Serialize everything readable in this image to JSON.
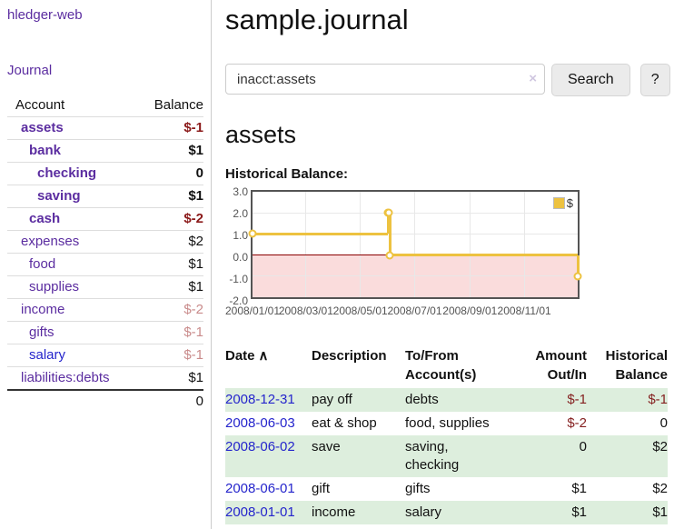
{
  "app": {
    "brand": "hledger-web",
    "nav_journal": "Journal"
  },
  "icons": {
    "sort_ascending": "∧",
    "clear": "×"
  },
  "colors": {
    "link_purple": "#5b2da0",
    "link_blue": "#2525cc",
    "negative_strong": "#8b1a1a",
    "negative_muted": "#c98b8b",
    "negative_table": "#841f1f",
    "row_shade_green": "#ddeedd",
    "series_gold": "#edc240",
    "chart_negative_fill": "#fadcdc",
    "chart_zero_line": "#8b0000",
    "chart_border": "#545454"
  },
  "sidebar": {
    "accounts_table": {
      "col_account": "Account",
      "col_balance": "Balance",
      "rows": [
        {
          "name": "assets",
          "depth": 1,
          "bold": true,
          "link": "purple",
          "balance": "$-1",
          "balance_style": "neg-strong"
        },
        {
          "name": "bank",
          "depth": 2,
          "bold": true,
          "link": "purple",
          "balance": "$1",
          "balance_style": "strong"
        },
        {
          "name": "checking",
          "depth": 3,
          "bold": true,
          "link": "purple",
          "balance": "0",
          "balance_style": "strong"
        },
        {
          "name": "saving",
          "depth": 3,
          "bold": true,
          "link": "purple",
          "balance": "$1",
          "balance_style": "strong"
        },
        {
          "name": "cash",
          "depth": 2,
          "bold": true,
          "link": "purple",
          "balance": "$-2",
          "balance_style": "neg-strong"
        },
        {
          "name": "expenses",
          "depth": 1,
          "bold": false,
          "link": "purple",
          "balance": "$2",
          "balance_style": "plain"
        },
        {
          "name": "food",
          "depth": 2,
          "bold": false,
          "link": "purple",
          "balance": "$1",
          "balance_style": "plain"
        },
        {
          "name": "supplies",
          "depth": 2,
          "bold": false,
          "link": "purple",
          "balance": "$1",
          "balance_style": "plain"
        },
        {
          "name": "income",
          "depth": 1,
          "bold": false,
          "link": "purple",
          "balance": "$-2",
          "balance_style": "neg-muted"
        },
        {
          "name": "gifts",
          "depth": 2,
          "bold": false,
          "link": "purple",
          "balance": "$-1",
          "balance_style": "neg-muted"
        },
        {
          "name": "salary",
          "depth": 2,
          "bold": false,
          "link": "blue",
          "balance": "$-1",
          "balance_style": "neg-muted"
        },
        {
          "name": "liabilities:debts",
          "depth": 1,
          "bold": false,
          "link": "purple",
          "balance": "$1",
          "balance_style": "plain"
        }
      ],
      "total": "0"
    }
  },
  "main": {
    "title": "sample.journal",
    "search": {
      "value": "inacct:assets",
      "button": "Search",
      "help_button": "?"
    },
    "account_heading": "assets",
    "chart_label": "Historical Balance:"
  },
  "chart_data": {
    "type": "line",
    "step": true,
    "title": "Historical Balance",
    "series": [
      {
        "name": "$",
        "color": "#edc240",
        "points": [
          [
            "2008-01-01",
            1.0
          ],
          [
            "2008-06-01",
            2.0
          ],
          [
            "2008-06-02",
            2.0
          ],
          [
            "2008-06-03",
            0.0
          ],
          [
            "2008-12-31",
            -1.0
          ]
        ]
      }
    ],
    "x_range": [
      "2008-01-01",
      "2008-12-31"
    ],
    "ylim": [
      -2.0,
      3.0
    ],
    "ytick_labels": [
      "3.0",
      "2.0",
      "1.0",
      "0.0",
      "-1.0",
      "-2.0"
    ],
    "ytick_values": [
      3,
      2,
      1,
      0,
      -1,
      -2
    ],
    "xtick_labels": [
      "2008/01/01",
      "2008/03/01",
      "2008/05/01",
      "2008/07/01",
      "2008/09/01",
      "2008/11/01"
    ],
    "grid": true,
    "legend_position": "top-right",
    "negative_region_shaded": true
  },
  "register_table": {
    "headers": {
      "date": "Date",
      "description": "Description",
      "tofrom": "To/From Account(s)",
      "amount": "Amount Out/In",
      "balance": "Historical Balance"
    },
    "rows": [
      {
        "date": "2008-12-31",
        "description": "pay off",
        "accounts": "debts",
        "amount": "$-1",
        "amount_neg": true,
        "balance": "$-1",
        "balance_neg": true,
        "shaded": true
      },
      {
        "date": "2008-06-03",
        "description": "eat & shop",
        "accounts": "food, supplies",
        "amount": "$-2",
        "amount_neg": true,
        "balance": "0",
        "balance_neg": false,
        "shaded": false
      },
      {
        "date": "2008-06-02",
        "description": "save",
        "accounts": "saving, checking",
        "amount": "0",
        "amount_neg": false,
        "balance": "$2",
        "balance_neg": false,
        "shaded": true
      },
      {
        "date": "2008-06-01",
        "description": "gift",
        "accounts": "gifts",
        "amount": "$1",
        "amount_neg": false,
        "balance": "$2",
        "balance_neg": false,
        "shaded": false
      },
      {
        "date": "2008-01-01",
        "description": "income",
        "accounts": "salary",
        "amount": "$1",
        "amount_neg": false,
        "balance": "$1",
        "balance_neg": false,
        "shaded": true
      }
    ]
  }
}
